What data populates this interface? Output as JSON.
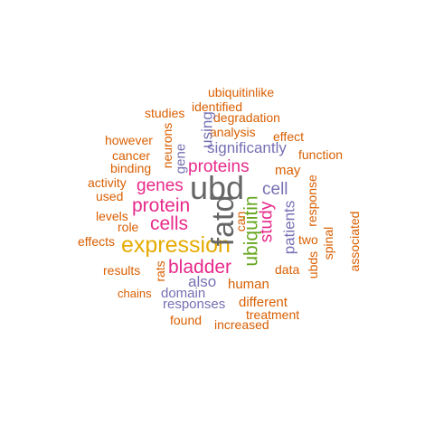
{
  "word_cloud": {
    "colors": {
      "orange": "#D95F02",
      "purple": "#7570B3",
      "magenta": "#E7298A",
      "green": "#66A61E",
      "gold": "#E6AB02",
      "gray": "#666666"
    },
    "words": {
      "ubiquitinlike": "ubiquitinlike",
      "identified": "identified",
      "studies": "studies",
      "degradation": "degradation",
      "analysis": "analysis",
      "effect": "effect",
      "using": "using",
      "neurons": "neurons",
      "however": "however",
      "significantly": "significantly",
      "function": "function",
      "cancer": "cancer",
      "gene": "gene",
      "proteins": "proteins",
      "may": "may",
      "binding": "binding",
      "activity": "activity",
      "genes": "genes",
      "ubd": "ubd",
      "cell": "cell",
      "response": "response",
      "used": "used",
      "protein": "protein",
      "spinal": "spinal",
      "levels": "levels",
      "fatd": "fatd",
      "study": "study",
      "associated": "associated",
      "role": "role",
      "cells": "cells",
      "can": "can",
      "patients": "patients",
      "effects": "effects",
      "expression": "expression",
      "ubiquitin": "ubiquitin",
      "two": "two",
      "results": "results",
      "bladder": "bladder",
      "data": "data",
      "ubds": "ubds",
      "rats": "rats",
      "also": "also",
      "human": "human",
      "chains": "chains",
      "domain": "domain",
      "different": "different",
      "responses": "responses",
      "treatment": "treatment",
      "found": "found",
      "increased": "increased"
    }
  }
}
